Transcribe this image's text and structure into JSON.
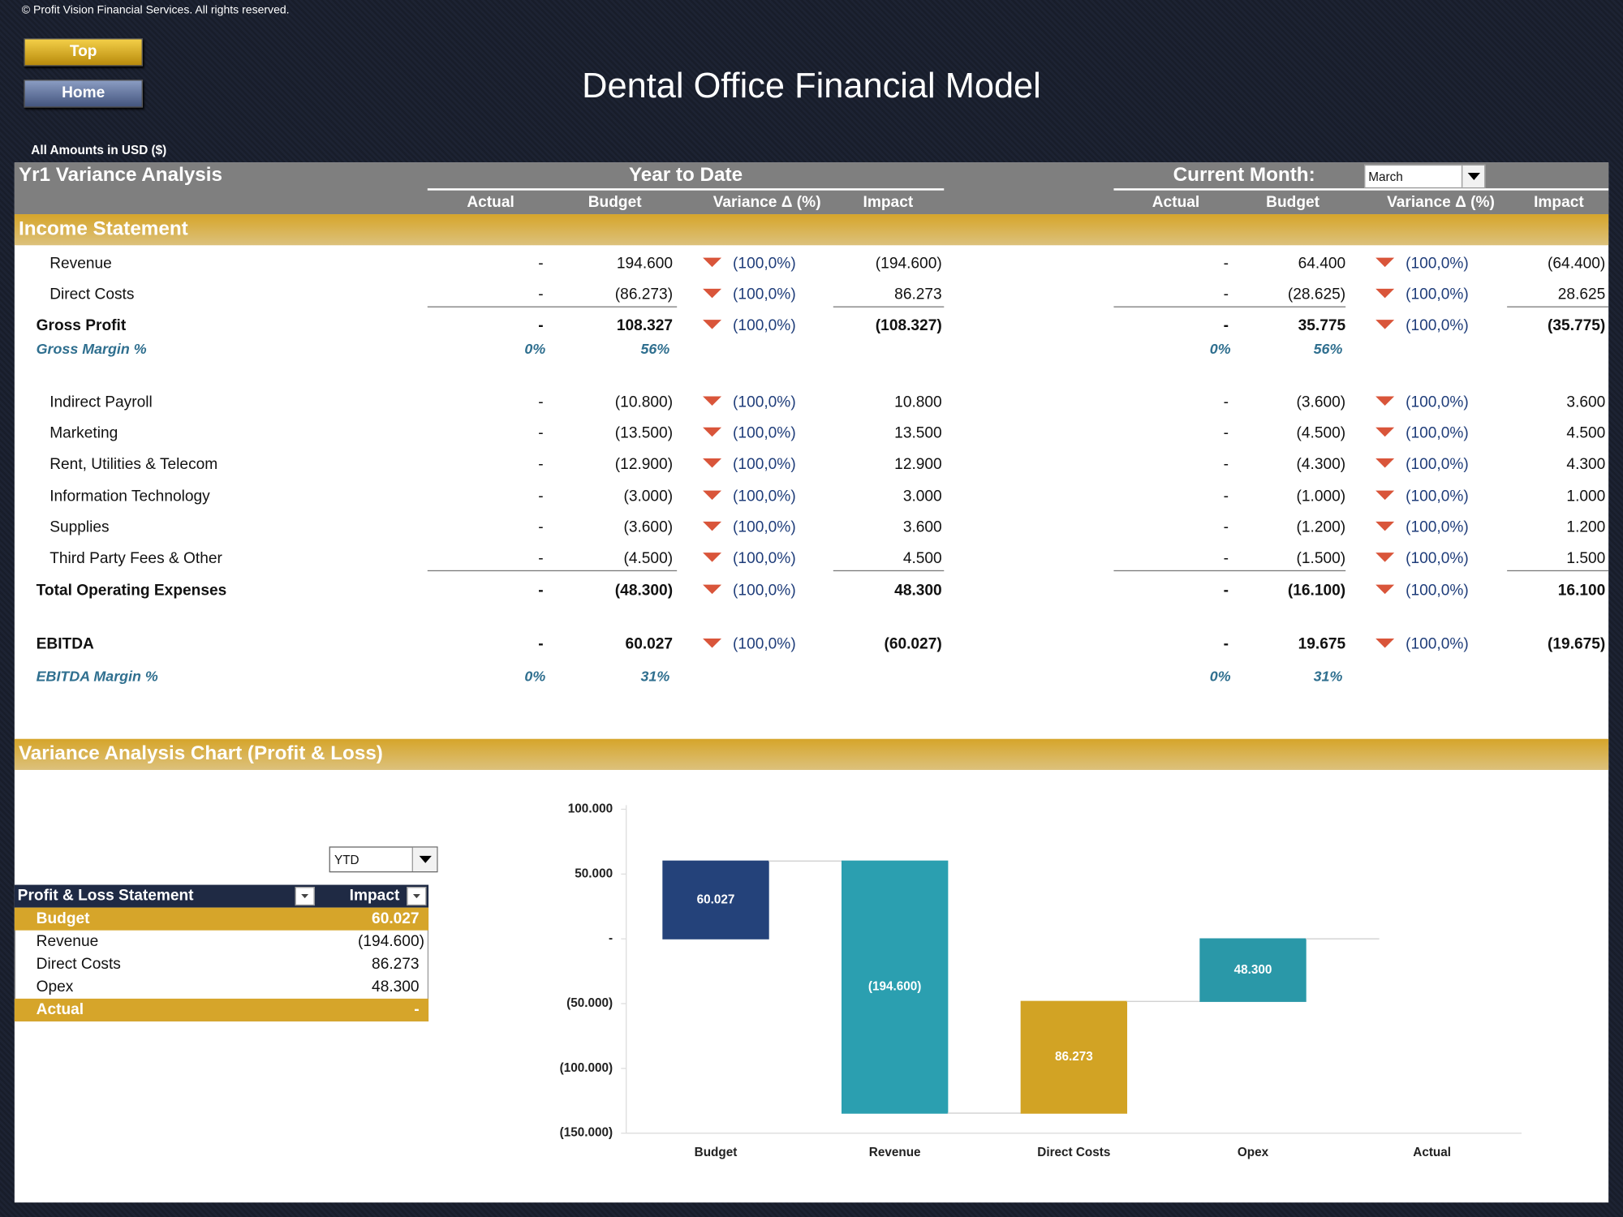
{
  "header": {
    "copyright": "© Profit Vision Financial Services. All rights reserved.",
    "buttons": [
      "Top",
      "Home"
    ],
    "title": "Dental Office Financial Model",
    "amounts_note": "All Amounts in  USD ($)"
  },
  "variance_table": {
    "title": "Yr1 Variance Analysis",
    "ytd_title": "Year to Date",
    "cm_title": "Current Month:",
    "month": "March",
    "columns": [
      "Actual",
      "Budget",
      "Variance Δ  (%)",
      "Impact"
    ],
    "section": "Income Statement",
    "rows": [
      {
        "label": "Revenue",
        "style": "item",
        "ytd": [
          "-",
          "194.600",
          "(100,0%)",
          "(194.600)"
        ],
        "cm": [
          "-",
          "64.400",
          "(100,0%)",
          "(64.400)"
        ]
      },
      {
        "label": "Direct Costs",
        "style": "item",
        "ytd": [
          "-",
          "(86.273)",
          "(100,0%)",
          "86.273"
        ],
        "cm": [
          "-",
          "(28.625)",
          "(100,0%)",
          "28.625"
        ]
      },
      {
        "label": "Gross Profit",
        "style": "total",
        "ytd": [
          "-",
          "108.327",
          "(100,0%)",
          "(108.327)"
        ],
        "cm": [
          "-",
          "35.775",
          "(100,0%)",
          "(35.775)"
        ]
      },
      {
        "label": "Gross Margin %",
        "style": "margin",
        "ytd": [
          "0%",
          "56%"
        ],
        "cm": [
          "0%",
          "56%"
        ]
      },
      {
        "label": "Indirect Payroll",
        "style": "item",
        "ytd": [
          "-",
          "(10.800)",
          "(100,0%)",
          "10.800"
        ],
        "cm": [
          "-",
          "(3.600)",
          "(100,0%)",
          "3.600"
        ]
      },
      {
        "label": "Marketing",
        "style": "item",
        "ytd": [
          "-",
          "(13.500)",
          "(100,0%)",
          "13.500"
        ],
        "cm": [
          "-",
          "(4.500)",
          "(100,0%)",
          "4.500"
        ]
      },
      {
        "label": "Rent, Utilities & Telecom",
        "style": "item",
        "ytd": [
          "-",
          "(12.900)",
          "(100,0%)",
          "12.900"
        ],
        "cm": [
          "-",
          "(4.300)",
          "(100,0%)",
          "4.300"
        ]
      },
      {
        "label": "Information Technology",
        "style": "item",
        "ytd": [
          "-",
          "(3.000)",
          "(100,0%)",
          "3.000"
        ],
        "cm": [
          "-",
          "(1.000)",
          "(100,0%)",
          "1.000"
        ]
      },
      {
        "label": "Supplies",
        "style": "item",
        "ytd": [
          "-",
          "(3.600)",
          "(100,0%)",
          "3.600"
        ],
        "cm": [
          "-",
          "(1.200)",
          "(100,0%)",
          "1.200"
        ]
      },
      {
        "label": "Third Party Fees & Other",
        "style": "item",
        "ytd": [
          "-",
          "(4.500)",
          "(100,0%)",
          "4.500"
        ],
        "cm": [
          "-",
          "(1.500)",
          "(100,0%)",
          "1.500"
        ]
      },
      {
        "label": "Total Operating Expenses",
        "style": "total",
        "ytd": [
          "-",
          "(48.300)",
          "(100,0%)",
          "48.300"
        ],
        "cm": [
          "-",
          "(16.100)",
          "(100,0%)",
          "16.100"
        ]
      },
      {
        "label": "EBITDA",
        "style": "total",
        "ytd": [
          "-",
          "60.027",
          "(100,0%)",
          "(60.027)"
        ],
        "cm": [
          "-",
          "19.675",
          "(100,0%)",
          "(19.675)"
        ]
      },
      {
        "label": "EBITDA Margin %",
        "style": "margin",
        "ytd": [
          "0%",
          "31%"
        ],
        "cm": [
          "0%",
          "31%"
        ]
      }
    ]
  },
  "pnl_table": {
    "filter": "YTD",
    "headers": [
      "Profit & Loss Statement",
      "Impact"
    ],
    "rows": [
      [
        "Budget",
        "60.027"
      ],
      [
        "Revenue",
        "(194.600)"
      ],
      [
        "Direct Costs",
        "86.273"
      ],
      [
        "Opex",
        "48.300"
      ],
      [
        "Actual",
        "-"
      ]
    ]
  },
  "chart_data": {
    "type": "waterfall",
    "title": "Variance Analysis Chart (Profit & Loss)",
    "categories": [
      "Budget",
      "Revenue",
      "Direct Costs",
      "Opex",
      "Actual"
    ],
    "values": [
      60027,
      -194600,
      86273,
      48300,
      0
    ],
    "value_labels": [
      "60.027",
      "(194.600)",
      "86.273",
      "48.300",
      null
    ],
    "colors": [
      "#24427a",
      "#2b9fb0",
      "#d2a324",
      "#2a98a8",
      "#2a6f8a"
    ],
    "ylim": [
      -150000,
      100000
    ],
    "yticks": [
      {
        "value": -150000,
        "label": "(150.000)"
      },
      {
        "value": -100000,
        "label": "(100.000)"
      },
      {
        "value": -50000,
        "label": "(50.000)"
      },
      {
        "value": 0,
        "label": "-"
      },
      {
        "value": 50000,
        "label": "50.000"
      },
      {
        "value": 100000,
        "label": "100.000"
      }
    ]
  }
}
